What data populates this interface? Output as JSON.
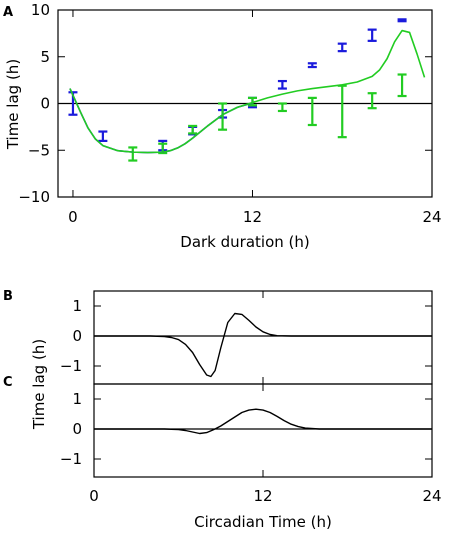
{
  "chart_data": [
    {
      "panel": "A",
      "type": "line",
      "title": "",
      "xlabel": "Dark duration (h)",
      "ylabel": "Time lag (h)",
      "xlim": [
        -1,
        24
      ],
      "ylim": [
        -10,
        10
      ],
      "xticks": [
        0,
        12,
        24
      ],
      "yticks": [
        -10,
        -5,
        0,
        5,
        10
      ],
      "zero_line": true,
      "series": [
        {
          "kind": "errorbar",
          "color": "#1a1adc",
          "points": [
            {
              "x": 0,
              "y": 0.0,
              "lo": -1.2,
              "hi": 1.2
            },
            {
              "x": 2,
              "y": -3.5,
              "lo": -4.0,
              "hi": -3.0
            },
            {
              "x": 6,
              "y": -4.5,
              "lo": -5.0,
              "hi": -4.0
            },
            {
              "x": 8,
              "y": -2.9,
              "lo": -3.3,
              "hi": -2.5
            },
            {
              "x": 10,
              "y": -1.1,
              "lo": -1.5,
              "hi": -0.7
            },
            {
              "x": 12,
              "y": 0.1,
              "lo": -0.4,
              "hi": 0.6
            },
            {
              "x": 14,
              "y": 2.0,
              "lo": 1.6,
              "hi": 2.4
            },
            {
              "x": 16,
              "y": 4.1,
              "lo": 3.9,
              "hi": 4.3
            },
            {
              "x": 18,
              "y": 6.0,
              "lo": 5.6,
              "hi": 6.4
            },
            {
              "x": 20,
              "y": 7.3,
              "lo": 6.7,
              "hi": 7.9
            },
            {
              "x": 22,
              "y": 8.9,
              "lo": 8.8,
              "hi": 9.0
            }
          ]
        },
        {
          "kind": "errorbar",
          "color": "#22cc22",
          "points": [
            {
              "x": 4,
              "y": -5.5,
              "lo": -6.1,
              "hi": -4.7
            },
            {
              "x": 6,
              "y": -4.8,
              "lo": -5.3,
              "hi": -4.3
            },
            {
              "x": 8,
              "y": -2.8,
              "lo": -3.2,
              "hi": -2.4
            },
            {
              "x": 10,
              "y": -1.2,
              "lo": -2.8,
              "hi": 0.0
            },
            {
              "x": 12,
              "y": 0.2,
              "lo": -0.2,
              "hi": 0.6
            },
            {
              "x": 14,
              "y": -0.4,
              "lo": -0.8,
              "hi": 0.0
            },
            {
              "x": 16,
              "y": -1.0,
              "lo": -2.3,
              "hi": 0.6
            },
            {
              "x": 18,
              "y": -0.7,
              "lo": -3.6,
              "hi": 1.9
            },
            {
              "x": 20,
              "y": 0.3,
              "lo": -0.5,
              "hi": 1.1
            },
            {
              "x": 22,
              "y": 1.5,
              "lo": 0.8,
              "hi": 3.1
            }
          ]
        },
        {
          "kind": "curve",
          "color": "#1a1adc",
          "x": [
            -0.2,
            0.5,
            1.0,
            1.5,
            2.0,
            3.0,
            4.0,
            5.0,
            6.0,
            6.5,
            7.0,
            7.5,
            8.0,
            9.0,
            10.0,
            11.0,
            12.0
          ],
          "y": [
            1.6,
            -0.9,
            -2.6,
            -3.8,
            -4.5,
            -5.05,
            -5.2,
            -5.25,
            -5.2,
            -5.05,
            -4.75,
            -4.3,
            -3.7,
            -2.4,
            -1.2,
            -0.4,
            0.05
          ]
        },
        {
          "kind": "curve",
          "color": "#22cc22",
          "x": [
            -0.2,
            0.5,
            1.0,
            1.5,
            2.0,
            3.0,
            4.0,
            5.0,
            6.0,
            6.5,
            7.0,
            7.5,
            8.0,
            9.0,
            10.0,
            11.0,
            12.0,
            13.0,
            14.0,
            15.0,
            16.0,
            17.0,
            18.0,
            19.0,
            20.0,
            20.5,
            21.0,
            21.5,
            22.0,
            22.5,
            23.0,
            23.5
          ],
          "y": [
            1.6,
            -0.9,
            -2.6,
            -3.8,
            -4.5,
            -5.05,
            -5.2,
            -5.25,
            -5.2,
            -5.05,
            -4.75,
            -4.3,
            -3.7,
            -2.4,
            -1.2,
            -0.4,
            0.1,
            0.6,
            1.0,
            1.35,
            1.6,
            1.8,
            2.0,
            2.3,
            2.9,
            3.6,
            4.8,
            6.6,
            7.8,
            7.6,
            5.3,
            2.8
          ]
        }
      ]
    },
    {
      "panel": "B",
      "type": "line",
      "xlabel": "",
      "ylabel": "",
      "xlim": [
        0,
        24
      ],
      "ylim": [
        -1.6,
        1.5
      ],
      "xticks": [
        0,
        12,
        24
      ],
      "yticks": [
        -1,
        0,
        1
      ],
      "zero_line": true,
      "series": [
        {
          "kind": "curve",
          "color": "#000000",
          "x": [
            0,
            4,
            5,
            5.5,
            6,
            6.5,
            7,
            7.5,
            8,
            8.3,
            8.6,
            9,
            9.5,
            10,
            10.5,
            11,
            11.5,
            12,
            12.5,
            13,
            14,
            24
          ],
          "y": [
            0,
            0,
            -0.02,
            -0.05,
            -0.12,
            -0.28,
            -0.55,
            -0.95,
            -1.3,
            -1.35,
            -1.15,
            -0.4,
            0.45,
            0.75,
            0.72,
            0.52,
            0.3,
            0.14,
            0.05,
            0.01,
            0,
            0
          ]
        }
      ]
    },
    {
      "panel": "C",
      "type": "line",
      "xlabel": "Circadian Time (h)",
      "ylabel": "",
      "xlim": [
        0,
        24
      ],
      "ylim": [
        -1.6,
        1.5
      ],
      "xticks": [
        0,
        12,
        24
      ],
      "yticks": [
        -1,
        0,
        1
      ],
      "zero_line": true,
      "series": [
        {
          "kind": "curve",
          "color": "#000000",
          "x": [
            0,
            5,
            6,
            6.5,
            7,
            7.5,
            8,
            8.5,
            9,
            9.5,
            10,
            10.5,
            11,
            11.5,
            12,
            12.5,
            13,
            13.5,
            14,
            14.5,
            15,
            16,
            24
          ],
          "y": [
            0,
            0,
            -0.02,
            -0.05,
            -0.1,
            -0.15,
            -0.12,
            -0.02,
            0.1,
            0.25,
            0.4,
            0.55,
            0.63,
            0.66,
            0.63,
            0.55,
            0.42,
            0.28,
            0.16,
            0.08,
            0.03,
            0,
            0
          ]
        }
      ]
    }
  ],
  "shared_ylabel_bc": "Time lag (h)"
}
